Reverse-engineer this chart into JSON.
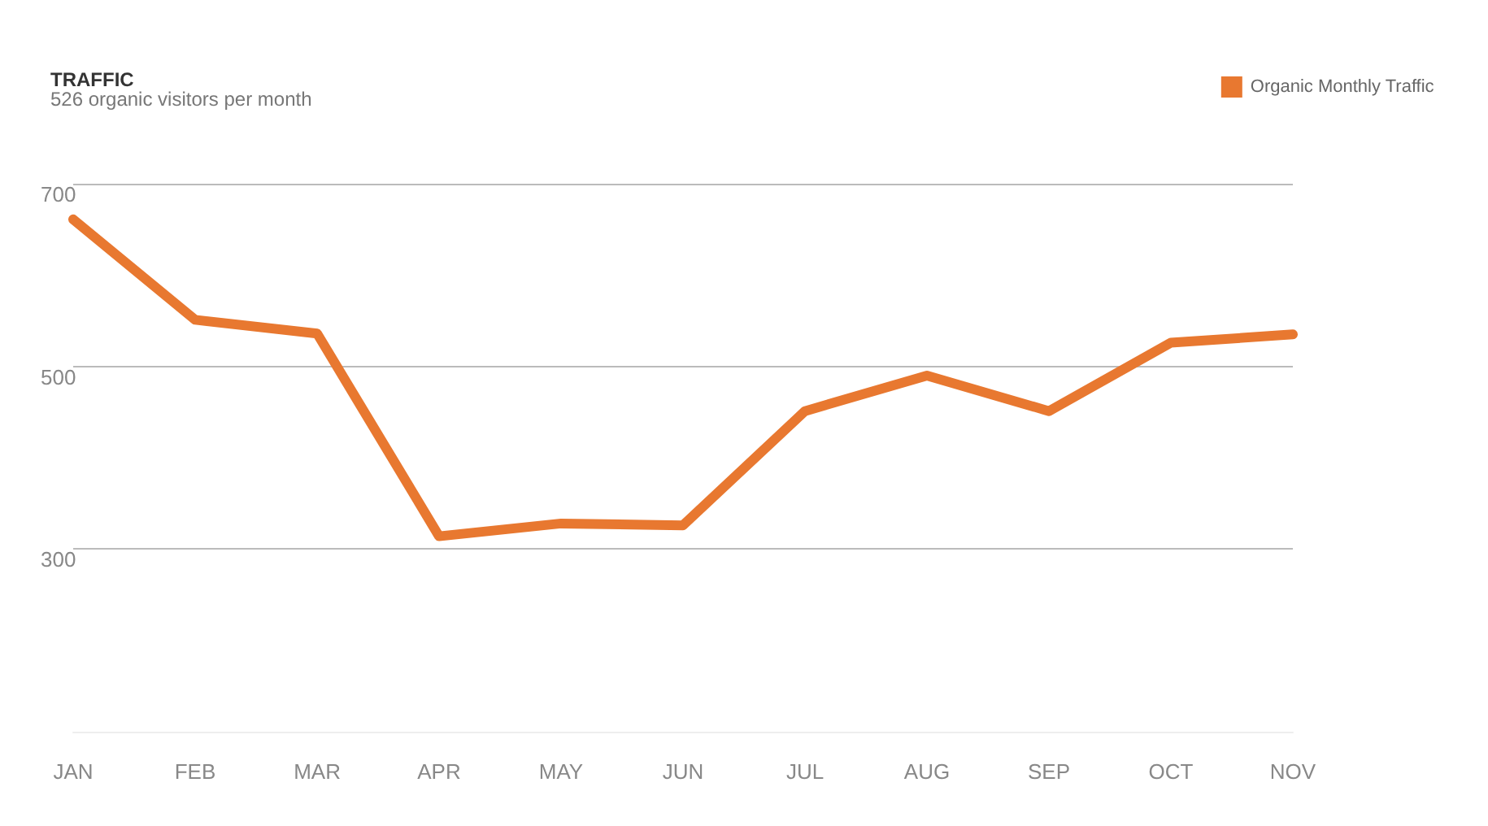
{
  "chart_data": {
    "type": "line",
    "title": "TRAFFIC",
    "subtitle": "526 organic visitors per month",
    "categories": [
      "JAN",
      "FEB",
      "MAR",
      "APR",
      "MAY",
      "JUN",
      "JUL",
      "AUG",
      "SEP",
      "OCT",
      "NOV"
    ],
    "series": [
      {
        "name": "Organic Monthly Traffic",
        "color": "#e87830",
        "values": [
          661,
          551,
          536,
          314,
          328,
          326,
          451,
          490,
          451,
          526,
          535
        ]
      }
    ],
    "ylim": [
      100,
      700
    ],
    "yticks": [
      300,
      500,
      700
    ],
    "grid": "y",
    "legend": "top right",
    "marker": "none",
    "line_style": "solid"
  }
}
